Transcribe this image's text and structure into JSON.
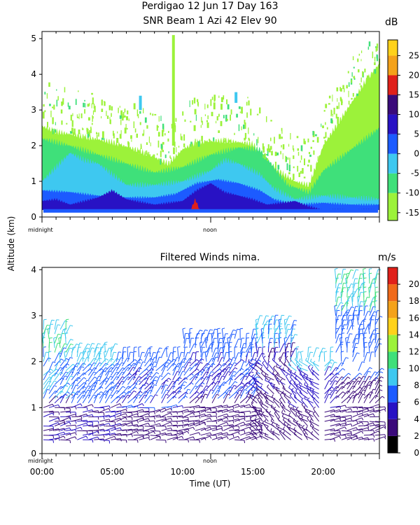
{
  "header": {
    "title_line1": "Perdigao  12 Jun 17 Day 163",
    "title_line2": "SNR Beam 1 Azi  42 Elev 90"
  },
  "shared_ylabel": "Altitude (km)",
  "markers": {
    "midnight": "midnight",
    "noon": "noon"
  },
  "colors": {
    "snr_scale": [
      "#9cf23a",
      "#3fe07a",
      "#3ec8f0",
      "#1c5bff",
      "#2812c4",
      "#3a0a7a",
      "#e0201a",
      "#f4a21a",
      "#ffd21a"
    ],
    "wind_scale": [
      "#000000",
      "#3a0a7a",
      "#2812c4",
      "#1c5bff",
      "#3ec8f0",
      "#3fe07a",
      "#9cf23a",
      "#ffd21a",
      "#f4a21a",
      "#f06a1a",
      "#e0201a"
    ]
  },
  "chart_data": [
    {
      "type": "heatmap",
      "title": "",
      "xlabel": "",
      "ylabel": "Altitude (km)",
      "xlim": [
        0,
        24
      ],
      "ylim": [
        0,
        5.2
      ],
      "yticks": [
        "0",
        "1",
        "2",
        "3",
        "4",
        "5"
      ],
      "grid": false,
      "colorbar": {
        "unit": "dB",
        "ticks": [
          "25",
          "20",
          "15",
          "10",
          "5",
          "0",
          "-5",
          "-10",
          "-15"
        ],
        "range": [
          -17,
          29
        ]
      },
      "layers": [
        {
          "level": "-15 to -10 dB",
          "profile": [
            [
              0,
              2.55
            ],
            [
              1,
              2.4
            ],
            [
              3,
              2.25
            ],
            [
              5,
              2.1
            ],
            [
              7,
              1.85
            ],
            [
              9,
              1.5
            ],
            [
              10,
              1.9
            ],
            [
              11,
              2.1
            ],
            [
              13,
              2.15
            ],
            [
              15,
              2.05
            ],
            [
              16,
              1.6
            ],
            [
              17,
              1.25
            ],
            [
              18,
              1.0
            ],
            [
              19,
              0.9
            ],
            [
              20,
              2.0
            ],
            [
              21,
              2.6
            ],
            [
              22,
              3.2
            ],
            [
              23,
              3.8
            ],
            [
              24,
              4.3
            ]
          ]
        },
        {
          "level": "-10 to -5 dB",
          "profile": [
            [
              0,
              2.2
            ],
            [
              2,
              2.0
            ],
            [
              4,
              1.75
            ],
            [
              6,
              1.5
            ],
            [
              8,
              1.25
            ],
            [
              10,
              1.4
            ],
            [
              12,
              1.75
            ],
            [
              14,
              1.95
            ],
            [
              15.5,
              1.9
            ],
            [
              16.5,
              1.4
            ],
            [
              17.5,
              0.9
            ],
            [
              19,
              0.7
            ],
            [
              20,
              1.3
            ],
            [
              22,
              1.9
            ],
            [
              24,
              2.5
            ]
          ]
        },
        {
          "level": "-5 to 0 dB",
          "profile": [
            [
              0,
              1.0
            ],
            [
              1,
              1.4
            ],
            [
              2,
              1.8
            ],
            [
              3,
              1.6
            ],
            [
              4,
              1.5
            ],
            [
              6,
              0.9
            ],
            [
              8,
              0.9
            ],
            [
              10,
              1.0
            ],
            [
              12,
              1.3
            ],
            [
              13,
              1.6
            ],
            [
              14,
              1.5
            ],
            [
              15.5,
              1.2
            ],
            [
              16.5,
              0.8
            ],
            [
              18,
              0.5
            ],
            [
              20,
              0.6
            ],
            [
              22,
              0.55
            ],
            [
              24,
              0.5
            ]
          ]
        },
        {
          "level": "0 to 5 dB",
          "profile": [
            [
              0,
              0.75
            ],
            [
              2,
              0.7
            ],
            [
              4,
              0.6
            ],
            [
              6,
              0.55
            ],
            [
              8,
              0.55
            ],
            [
              9.5,
              0.65
            ],
            [
              11,
              0.95
            ],
            [
              12.5,
              1.05
            ],
            [
              14,
              0.95
            ],
            [
              15.5,
              0.75
            ],
            [
              16.5,
              0.5
            ],
            [
              18,
              0.35
            ],
            [
              20,
              0.4
            ],
            [
              22,
              0.35
            ],
            [
              24,
              0.35
            ]
          ]
        },
        {
          "level": "5 to 10 dB",
          "profile": [
            [
              0,
              0.45
            ],
            [
              1,
              0.5
            ],
            [
              2,
              0.35
            ],
            [
              4,
              0.55
            ],
            [
              5,
              0.75
            ],
            [
              6,
              0.5
            ],
            [
              8,
              0.35
            ],
            [
              10,
              0.45
            ],
            [
              11,
              0.75
            ],
            [
              12,
              0.95
            ],
            [
              13,
              0.7
            ],
            [
              14,
              0.6
            ],
            [
              15,
              0.5
            ],
            [
              16,
              0.35
            ],
            [
              18,
              0.45
            ],
            [
              19,
              0.3
            ],
            [
              20,
              0.2
            ],
            [
              24,
              0.2
            ]
          ]
        },
        {
          "level": "15 to 20 dB",
          "profile": [
            [
              10.6,
              0.22
            ],
            [
              10.9,
              0.5
            ],
            [
              11.2,
              0.22
            ]
          ]
        }
      ],
      "columns": [
        {
          "x": 9.35,
          "bottom": 2.0,
          "top": 5.1
        },
        {
          "x": 7.0,
          "bottom": 3.0,
          "top": 3.4
        },
        {
          "x": 13.8,
          "bottom": 3.2,
          "top": 3.5
        }
      ]
    },
    {
      "type": "scatter",
      "title": "Filtered Winds nima.",
      "xlabel": "Time (UT)",
      "ylabel": "Altitude (km)",
      "xlim": [
        0,
        24
      ],
      "ylim": [
        0,
        4.05
      ],
      "xticks": [
        "00:00",
        "05:00",
        "10:00",
        "15:00",
        "20:00"
      ],
      "yticks": [
        "0",
        "1",
        "2",
        "3",
        "4"
      ],
      "grid": false,
      "colorbar": {
        "unit": "m/s",
        "ticks": [
          "20",
          "18",
          "16",
          "14",
          "12",
          "10",
          "8",
          "6",
          "4",
          "2",
          "0"
        ],
        "range": [
          0,
          22
        ]
      },
      "wind_field": {
        "time_step_hours": 0.4,
        "altitude_step_km": 0.1,
        "regimes": [
          {
            "from": 0,
            "to": 2,
            "top_km": 2.8,
            "speed_low": 4,
            "speed_mid": 8,
            "speed_high": 10
          },
          {
            "from": 2,
            "to": 5,
            "top_km": 2.3,
            "speed_low": 4,
            "speed_mid": 7,
            "speed_high": 9
          },
          {
            "from": 5,
            "to": 10,
            "top_km": 2.2,
            "speed_low": 3,
            "speed_mid": 6,
            "speed_high": 7
          },
          {
            "from": 10,
            "to": 15,
            "top_km": 2.6,
            "speed_low": 3,
            "speed_mid": 6,
            "speed_high": 7
          },
          {
            "from": 15,
            "to": 18,
            "top_km": 2.9,
            "speed_low": 3,
            "speed_mid": 4,
            "speed_high": 8
          },
          {
            "from": 18,
            "to": 20.5,
            "top_km": 2.2,
            "speed_low": 3,
            "speed_mid": 5,
            "speed_high": 9
          },
          {
            "from": 20.5,
            "to": 24,
            "top_km": 3.9,
            "speed_low": 3,
            "speed_mid": 7,
            "speed_high": 10
          }
        ]
      }
    }
  ]
}
